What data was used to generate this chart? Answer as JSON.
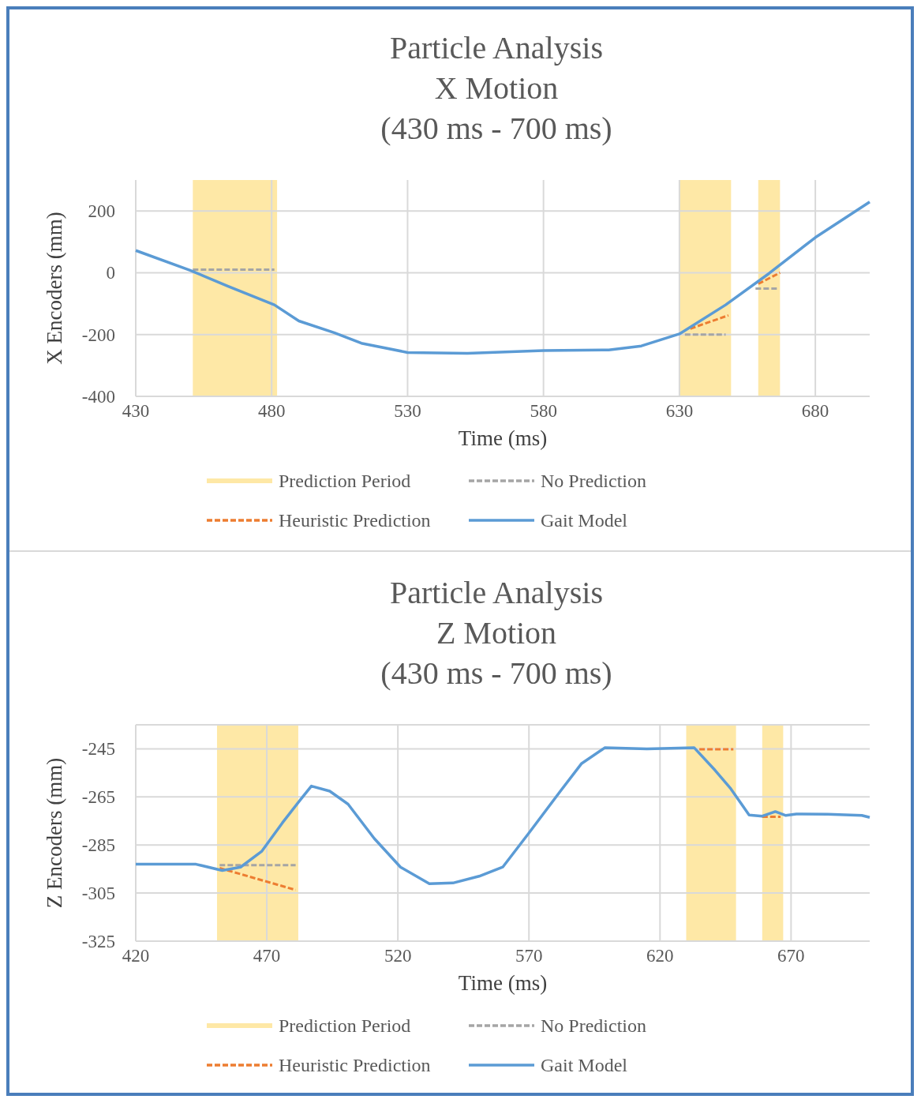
{
  "chart_data": [
    {
      "type": "line",
      "title": "Particle Analysis\nX Motion\n(430 ms - 700 ms)",
      "xlabel": "Time (ms)",
      "ylabel": "X Encoders (mm)",
      "xlim": [
        430,
        700
      ],
      "xticks": [
        430,
        480,
        530,
        580,
        630,
        680
      ],
      "ylim": [
        -400,
        300
      ],
      "yticks": [
        -400,
        -200,
        0,
        200
      ],
      "grid": true,
      "legend": "bottom",
      "bands": [
        {
          "axis": "x",
          "from": 451,
          "to": 482,
          "label": "Prediction Period",
          "color": "#fee8a6"
        },
        {
          "axis": "x",
          "from": 630,
          "to": 649,
          "color": "#fee8a6"
        },
        {
          "axis": "x",
          "from": 659,
          "to": 667,
          "color": "#fee8a6"
        }
      ],
      "series": [
        {
          "name": "No Prediction",
          "color": "#a5a5a5",
          "line_style": "dashed",
          "x": [
            451,
            481,
            482,
            632,
            647,
            648,
            658,
            666
          ],
          "values": [
            10,
            10,
            null,
            -200,
            -200,
            null,
            -51,
            -51
          ]
        },
        {
          "name": "Heuristic Prediction",
          "color": "#ed7d31",
          "line_style": "dashed",
          "x": [
            634,
            648,
            649,
            659,
            667
          ],
          "values": [
            -181,
            -138,
            null,
            -36,
            0
          ]
        },
        {
          "name": "Gait Model",
          "color": "#5b9bd5",
          "line_style": "solid",
          "x": [
            430,
            450,
            464,
            481,
            490,
            503,
            513,
            530,
            552,
            566,
            580,
            604,
            616,
            630,
            647,
            663,
            680,
            700
          ],
          "values": [
            72,
            8,
            -44,
            -104,
            -156,
            -194,
            -228,
            -258,
            -261,
            -256,
            -252,
            -250,
            -237,
            -198,
            -104,
            -2,
            114,
            229
          ]
        }
      ]
    },
    {
      "type": "line",
      "title": "Particle Analysis\nZ Motion\n(430 ms - 700 ms)",
      "xlabel": "Time (ms)",
      "ylabel": "Z Encoders (mm)",
      "xlim": [
        420,
        700
      ],
      "xticks": [
        420,
        470,
        520,
        570,
        620,
        670
      ],
      "ylim": [
        -325,
        -235
      ],
      "yticks": [
        -325,
        -305,
        -285,
        -265,
        -245,
        {
          "value": -235,
          "label": null
        }
      ],
      "grid": true,
      "legend": "bottom",
      "bands": [
        {
          "axis": "x",
          "from": 451,
          "to": 482,
          "label": "Prediction Period",
          "color": "#fee8a6"
        },
        {
          "axis": "x",
          "from": 630,
          "to": 649,
          "color": "#fee8a6"
        },
        {
          "axis": "x",
          "from": 659,
          "to": 667,
          "color": "#fee8a6"
        }
      ],
      "series": [
        {
          "name": "No Prediction",
          "color": "#a5a5a5",
          "line_style": "dashed",
          "x": [
            452,
            481
          ],
          "values": [
            -293.4,
            -293.4
          ]
        },
        {
          "name": "Heuristic Prediction",
          "color": "#ed7d31",
          "line_style": "dashed",
          "x": [
            452,
            481,
            482,
            635,
            648,
            649,
            659,
            666
          ],
          "values": [
            -294.6,
            -303.7,
            null,
            -245.2,
            -245.2,
            null,
            -273.3,
            -273.3
          ]
        },
        {
          "name": "Gait Model",
          "color": "#5b9bd5",
          "line_style": "solid",
          "x": [
            420,
            443,
            453,
            460,
            468,
            476,
            483,
            487,
            494,
            501,
            511,
            521,
            532,
            541,
            551,
            560,
            570,
            582,
            590,
            599,
            615,
            633,
            641,
            647,
            654,
            659,
            664,
            668,
            672,
            684,
            697,
            700
          ],
          "values": [
            -293,
            -293,
            -295.6,
            -294.2,
            -287.7,
            -275.7,
            -265.9,
            -260.5,
            -262.6,
            -268,
            -282.3,
            -294.2,
            -301.1,
            -300.8,
            -298,
            -294.2,
            -280,
            -262.6,
            -251.2,
            -244.5,
            -245,
            -244.5,
            -253.9,
            -261.6,
            -272.5,
            -273,
            -271.1,
            -272.7,
            -272.1,
            -272.2,
            -272.7,
            -273.5
          ]
        }
      ]
    }
  ]
}
